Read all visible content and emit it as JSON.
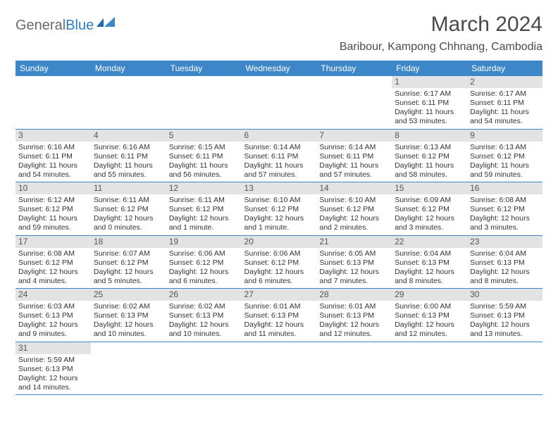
{
  "logo": {
    "general": "General",
    "blue": "Blue"
  },
  "title": "March 2024",
  "location": "Baribour, Kampong Chhnang, Cambodia",
  "palette": {
    "header_bg": "#3d87c9",
    "header_text": "#ffffff",
    "daynum_bg": "#e3e3e3",
    "cell_border": "#3d87c9",
    "body_text": "#333333",
    "title_text": "#4a4a4a",
    "logo_blue": "#2f7dc4"
  },
  "day_headers": [
    "Sunday",
    "Monday",
    "Tuesday",
    "Wednesday",
    "Thursday",
    "Friday",
    "Saturday"
  ],
  "weeks": [
    [
      null,
      null,
      null,
      null,
      null,
      {
        "n": "1",
        "sunrise": "Sunrise: 6:17 AM",
        "sunset": "Sunset: 6:11 PM",
        "daylight": "Daylight: 11 hours and 53 minutes."
      },
      {
        "n": "2",
        "sunrise": "Sunrise: 6:17 AM",
        "sunset": "Sunset: 6:11 PM",
        "daylight": "Daylight: 11 hours and 54 minutes."
      }
    ],
    [
      {
        "n": "3",
        "sunrise": "Sunrise: 6:16 AM",
        "sunset": "Sunset: 6:11 PM",
        "daylight": "Daylight: 11 hours and 54 minutes."
      },
      {
        "n": "4",
        "sunrise": "Sunrise: 6:16 AM",
        "sunset": "Sunset: 6:11 PM",
        "daylight": "Daylight: 11 hours and 55 minutes."
      },
      {
        "n": "5",
        "sunrise": "Sunrise: 6:15 AM",
        "sunset": "Sunset: 6:11 PM",
        "daylight": "Daylight: 11 hours and 56 minutes."
      },
      {
        "n": "6",
        "sunrise": "Sunrise: 6:14 AM",
        "sunset": "Sunset: 6:11 PM",
        "daylight": "Daylight: 11 hours and 57 minutes."
      },
      {
        "n": "7",
        "sunrise": "Sunrise: 6:14 AM",
        "sunset": "Sunset: 6:11 PM",
        "daylight": "Daylight: 11 hours and 57 minutes."
      },
      {
        "n": "8",
        "sunrise": "Sunrise: 6:13 AM",
        "sunset": "Sunset: 6:12 PM",
        "daylight": "Daylight: 11 hours and 58 minutes."
      },
      {
        "n": "9",
        "sunrise": "Sunrise: 6:13 AM",
        "sunset": "Sunset: 6:12 PM",
        "daylight": "Daylight: 11 hours and 59 minutes."
      }
    ],
    [
      {
        "n": "10",
        "sunrise": "Sunrise: 6:12 AM",
        "sunset": "Sunset: 6:12 PM",
        "daylight": "Daylight: 11 hours and 59 minutes."
      },
      {
        "n": "11",
        "sunrise": "Sunrise: 6:11 AM",
        "sunset": "Sunset: 6:12 PM",
        "daylight": "Daylight: 12 hours and 0 minutes."
      },
      {
        "n": "12",
        "sunrise": "Sunrise: 6:11 AM",
        "sunset": "Sunset: 6:12 PM",
        "daylight": "Daylight: 12 hours and 1 minute."
      },
      {
        "n": "13",
        "sunrise": "Sunrise: 6:10 AM",
        "sunset": "Sunset: 6:12 PM",
        "daylight": "Daylight: 12 hours and 1 minute."
      },
      {
        "n": "14",
        "sunrise": "Sunrise: 6:10 AM",
        "sunset": "Sunset: 6:12 PM",
        "daylight": "Daylight: 12 hours and 2 minutes."
      },
      {
        "n": "15",
        "sunrise": "Sunrise: 6:09 AM",
        "sunset": "Sunset: 6:12 PM",
        "daylight": "Daylight: 12 hours and 3 minutes."
      },
      {
        "n": "16",
        "sunrise": "Sunrise: 6:08 AM",
        "sunset": "Sunset: 6:12 PM",
        "daylight": "Daylight: 12 hours and 3 minutes."
      }
    ],
    [
      {
        "n": "17",
        "sunrise": "Sunrise: 6:08 AM",
        "sunset": "Sunset: 6:12 PM",
        "daylight": "Daylight: 12 hours and 4 minutes."
      },
      {
        "n": "18",
        "sunrise": "Sunrise: 6:07 AM",
        "sunset": "Sunset: 6:12 PM",
        "daylight": "Daylight: 12 hours and 5 minutes."
      },
      {
        "n": "19",
        "sunrise": "Sunrise: 6:06 AM",
        "sunset": "Sunset: 6:12 PM",
        "daylight": "Daylight: 12 hours and 6 minutes."
      },
      {
        "n": "20",
        "sunrise": "Sunrise: 6:06 AM",
        "sunset": "Sunset: 6:12 PM",
        "daylight": "Daylight: 12 hours and 6 minutes."
      },
      {
        "n": "21",
        "sunrise": "Sunrise: 6:05 AM",
        "sunset": "Sunset: 6:13 PM",
        "daylight": "Daylight: 12 hours and 7 minutes."
      },
      {
        "n": "22",
        "sunrise": "Sunrise: 6:04 AM",
        "sunset": "Sunset: 6:13 PM",
        "daylight": "Daylight: 12 hours and 8 minutes."
      },
      {
        "n": "23",
        "sunrise": "Sunrise: 6:04 AM",
        "sunset": "Sunset: 6:13 PM",
        "daylight": "Daylight: 12 hours and 8 minutes."
      }
    ],
    [
      {
        "n": "24",
        "sunrise": "Sunrise: 6:03 AM",
        "sunset": "Sunset: 6:13 PM",
        "daylight": "Daylight: 12 hours and 9 minutes."
      },
      {
        "n": "25",
        "sunrise": "Sunrise: 6:02 AM",
        "sunset": "Sunset: 6:13 PM",
        "daylight": "Daylight: 12 hours and 10 minutes."
      },
      {
        "n": "26",
        "sunrise": "Sunrise: 6:02 AM",
        "sunset": "Sunset: 6:13 PM",
        "daylight": "Daylight: 12 hours and 10 minutes."
      },
      {
        "n": "27",
        "sunrise": "Sunrise: 6:01 AM",
        "sunset": "Sunset: 6:13 PM",
        "daylight": "Daylight: 12 hours and 11 minutes."
      },
      {
        "n": "28",
        "sunrise": "Sunrise: 6:01 AM",
        "sunset": "Sunset: 6:13 PM",
        "daylight": "Daylight: 12 hours and 12 minutes."
      },
      {
        "n": "29",
        "sunrise": "Sunrise: 6:00 AM",
        "sunset": "Sunset: 6:13 PM",
        "daylight": "Daylight: 12 hours and 12 minutes."
      },
      {
        "n": "30",
        "sunrise": "Sunrise: 5:59 AM",
        "sunset": "Sunset: 6:13 PM",
        "daylight": "Daylight: 12 hours and 13 minutes."
      }
    ],
    [
      {
        "n": "31",
        "sunrise": "Sunrise: 5:59 AM",
        "sunset": "Sunset: 6:13 PM",
        "daylight": "Daylight: 12 hours and 14 minutes."
      },
      null,
      null,
      null,
      null,
      null,
      null
    ]
  ]
}
